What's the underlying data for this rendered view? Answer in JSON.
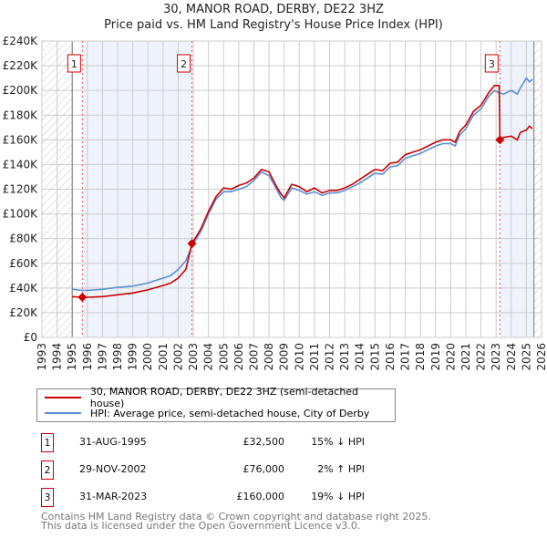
{
  "chart_data": {
    "type": "line",
    "title": "30, MANOR ROAD, DERBY, DE22 3HZ",
    "subtitle": "Price paid vs. HM Land Registry's House Price Index (HPI)",
    "xlim": [
      1993,
      2026
    ],
    "ylim": [
      0,
      240000
    ],
    "x_ticks": [
      "1993",
      "1994",
      "1995",
      "1996",
      "1997",
      "1998",
      "1999",
      "2000",
      "2001",
      "2002",
      "2003",
      "2004",
      "2005",
      "2006",
      "2007",
      "2008",
      "2009",
      "2010",
      "2011",
      "2012",
      "2013",
      "2014",
      "2015",
      "2016",
      "2017",
      "2018",
      "2019",
      "2020",
      "2021",
      "2022",
      "2023",
      "2024",
      "2025",
      "2026"
    ],
    "y_ticks": [
      "£0",
      "£20K",
      "£40K",
      "£60K",
      "£80K",
      "£100K",
      "£120K",
      "£140K",
      "£160K",
      "£180K",
      "£200K",
      "£220K",
      "£240K"
    ],
    "grid": true,
    "series": [
      {
        "name": "30, MANOR ROAD, DERBY, DE22 3HZ (semi-detached house)",
        "color": "#cc0000",
        "x": [
          1995.0,
          1995.67,
          1996,
          1997,
          1998,
          1999,
          2000,
          2001,
          2001.5,
          2002,
          2002.5,
          2002.91,
          2003.5,
          2004,
          2004.5,
          2005,
          2005.5,
          2006,
          2006.5,
          2007,
          2007.5,
          2008,
          2008.5,
          2008.8,
          2009,
          2009.5,
          2010,
          2010.5,
          2011,
          2011.5,
          2012,
          2012.5,
          2013,
          2013.5,
          2014,
          2014.5,
          2015,
          2015.5,
          2016,
          2016.5,
          2017,
          2017.5,
          2018,
          2018.5,
          2019,
          2019.5,
          2020,
          2020.3,
          2020.6,
          2021,
          2021.5,
          2022,
          2022.5,
          2022.9,
          2023.2,
          2023.25,
          2023.5,
          2024,
          2024.4,
          2024.6,
          2025,
          2025.2,
          2025.4
        ],
        "y": [
          33000,
          32500,
          32500,
          33000,
          34500,
          36000,
          38500,
          42000,
          44000,
          48000,
          55000,
          76000,
          88000,
          102000,
          114000,
          121000,
          120000,
          123000,
          125000,
          129000,
          136000,
          134000,
          122000,
          116000,
          113000,
          124000,
          122000,
          118000,
          121000,
          117000,
          119000,
          119000,
          121000,
          124000,
          128000,
          132000,
          136000,
          135000,
          141000,
          142000,
          148000,
          150000,
          152000,
          155000,
          158000,
          160000,
          160000,
          158000,
          167000,
          172000,
          183000,
          188000,
          198000,
          204000,
          204000,
          160000,
          162000,
          163000,
          160000,
          166000,
          168000,
          171000,
          169000
        ]
      },
      {
        "name": "HPI: Average price, semi-detached house, City of Derby",
        "color": "#5b8fd6",
        "x": [
          1995.0,
          1995.67,
          1996,
          1997,
          1998,
          1999,
          2000,
          2001,
          2001.5,
          2002,
          2002.5,
          2002.91,
          2003.5,
          2004,
          2004.5,
          2005,
          2005.5,
          2006,
          2006.5,
          2007,
          2007.5,
          2008,
          2008.5,
          2008.8,
          2009,
          2009.5,
          2010,
          2010.5,
          2011,
          2011.5,
          2012,
          2012.5,
          2013,
          2013.5,
          2014,
          2014.5,
          2015,
          2015.5,
          2016,
          2016.5,
          2017,
          2017.5,
          2018,
          2018.5,
          2019,
          2019.5,
          2020,
          2020.3,
          2020.6,
          2021,
          2021.5,
          2022,
          2022.5,
          2022.9,
          2023.2,
          2023.5,
          2024,
          2024.4,
          2024.6,
          2025,
          2025.2,
          2025.4
        ],
        "y": [
          39000,
          38000,
          38000,
          39000,
          40500,
          41500,
          44000,
          48000,
          50000,
          55000,
          62000,
          74000,
          86000,
          100000,
          112000,
          118000,
          118000,
          120000,
          122000,
          127000,
          134000,
          131000,
          120000,
          113000,
          111000,
          121000,
          119000,
          116000,
          118000,
          115000,
          117000,
          117000,
          119000,
          122000,
          125000,
          129000,
          133000,
          132000,
          138000,
          139000,
          145000,
          147000,
          149000,
          152000,
          155000,
          157000,
          157000,
          155000,
          164000,
          169000,
          180000,
          185000,
          195000,
          200000,
          198000,
          197000,
          200000,
          197000,
          202000,
          210000,
          207000,
          209000
        ]
      }
    ],
    "sales": [
      {
        "label": "1",
        "x": 1995.67,
        "y": 32500
      },
      {
        "label": "2",
        "x": 2002.91,
        "y": 76000
      },
      {
        "label": "3",
        "x": 2023.25,
        "y": 160000
      }
    ],
    "legend_placement": "below"
  },
  "legend": {
    "property": "30, MANOR ROAD, DERBY, DE22 3HZ (semi-detached house)",
    "hpi": "HPI: Average price, semi-detached house, City of Derby"
  },
  "transactions": [
    {
      "num": "1",
      "date": "31-AUG-1995",
      "price": "£32,500",
      "hpi": "15% ↓ HPI"
    },
    {
      "num": "2",
      "date": "29-NOV-2002",
      "price": "£76,000",
      "hpi": "2% ↑ HPI"
    },
    {
      "num": "3",
      "date": "31-MAR-2023",
      "price": "£160,000",
      "hpi": "19% ↓ HPI"
    }
  ],
  "footer": {
    "line1": "Contains HM Land Registry data © Crown copyright and database right 2025.",
    "line2": "This data is licensed under the Open Government Licence v3.0."
  },
  "colors": {
    "property": "#cc0000",
    "hpi": "#5b8fd6",
    "shade": "#eef3fc"
  }
}
